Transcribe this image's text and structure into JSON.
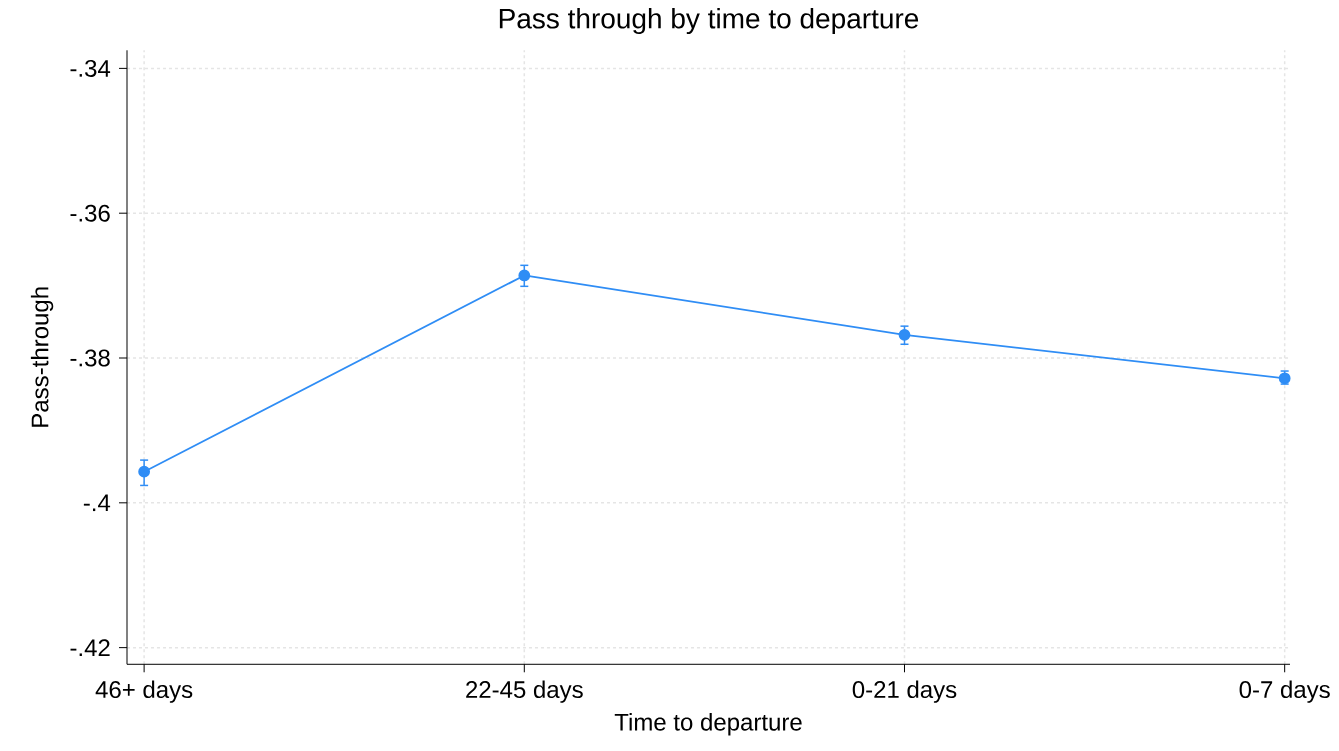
{
  "chart_data": {
    "type": "line",
    "title": "Pass through by time to departure",
    "xlabel": "Time to departure",
    "ylabel": "Pass-through",
    "categories": [
      "46+ days",
      "22-45 days",
      "0-21 days",
      "0-7 days"
    ],
    "series": [
      {
        "color": "#2f8df5",
        "values": [
          -0.3957,
          -0.3686,
          -0.3768,
          -0.3828
        ],
        "errors": [
          [
            -0.3976,
            -0.3941
          ],
          [
            -0.3701,
            -0.3672
          ],
          [
            -0.3781,
            -0.3756
          ],
          [
            -0.3836,
            -0.3818
          ]
        ]
      }
    ],
    "ylim": [
      -0.4223,
      -0.3375
    ],
    "yticks": [
      {
        "value": -0.42,
        "label": "-.42"
      },
      {
        "value": -0.4,
        "label": "-.4"
      },
      {
        "value": -0.38,
        "label": "-.38"
      },
      {
        "value": -0.36,
        "label": "-.36"
      },
      {
        "value": -0.34,
        "label": "-.34"
      }
    ],
    "grid": true,
    "marker": "circle",
    "line_style": "solid"
  }
}
